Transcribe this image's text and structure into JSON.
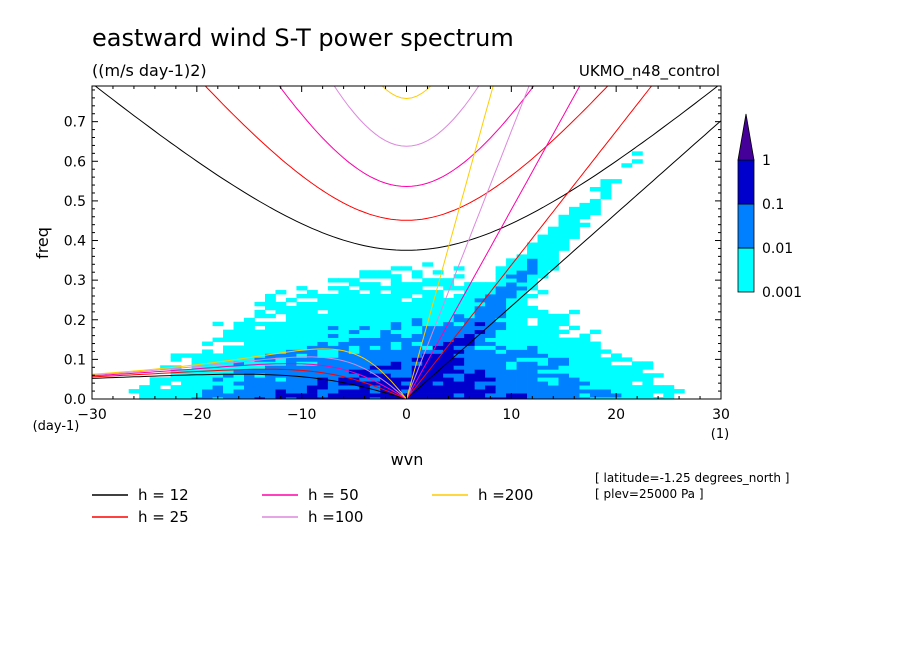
{
  "chart_data": {
    "type": "heatmap",
    "title": "eastward wind S-T power spectrum",
    "subtitle": "((m/s day-1)2)",
    "dataset": "UKMO_n48_control",
    "xlabel": "wvn",
    "ylabel": "freq",
    "x_unit": "(1)",
    "y_unit": "(day-1)",
    "xlim": [
      -30,
      30
    ],
    "ylim": [
      0,
      0.79
    ],
    "xticks": [
      -30,
      -20,
      -10,
      0,
      10,
      20,
      30
    ],
    "yticks": [
      0.0,
      0.1,
      0.2,
      0.3,
      0.4,
      0.5,
      0.6,
      0.7
    ],
    "ytick_labels": [
      "0.0",
      "0.1",
      "0.2",
      "0.3",
      "0.4",
      "0.5",
      "0.6",
      "0.7"
    ],
    "colorbar": {
      "levels": [
        0.001,
        0.01,
        0.1,
        1
      ],
      "labels": [
        "0.001",
        "0.01",
        "0.1",
        "1"
      ],
      "colors": [
        "#00ffff",
        "#0080ff",
        "#0000cc",
        "#440099"
      ]
    },
    "dispersion_curves": [
      {
        "name": "h = 12",
        "h": 12,
        "color": "#000000"
      },
      {
        "name": "h = 25",
        "h": 25,
        "color": "#ff0000"
      },
      {
        "name": "h = 50",
        "h": 50,
        "color": "#ff00aa"
      },
      {
        "name": "h =100",
        "h": 100,
        "color": "#dd88dd"
      },
      {
        "name": "h =200",
        "h": 200,
        "color": "#ffcc00"
      }
    ],
    "annotations": [
      "[ latitude=-1.25 degrees_north ]",
      "[ plev=25000 Pa ]"
    ],
    "grid": false
  }
}
